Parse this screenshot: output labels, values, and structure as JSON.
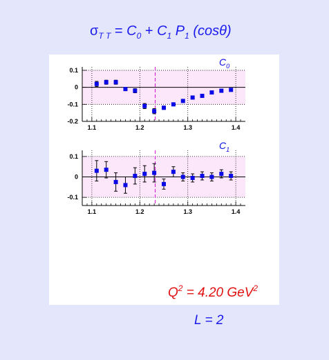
{
  "title": {
    "sigma": "σ",
    "sigma_sub": "T T",
    "eq": " = ",
    "c0": "C",
    "c0_sub": "0",
    "plus": " + ",
    "c1": "C",
    "c1_sub": "1",
    "p": " P",
    "p_sub": "1",
    "arg": " (cosθ)"
  },
  "q2_label": {
    "q": "Q",
    "exp": "2",
    "value": " = 4.20 GeV",
    "unit_exp": "2"
  },
  "l_label": "L = 2",
  "colors": {
    "background": "#e4e6fb",
    "panel": "#ffffff",
    "band": "#fce6fa",
    "marker": "#0a0ae6",
    "title": "#1a1aee",
    "q2": "#e01010",
    "dashed_line": "#d010d0"
  },
  "chart_data": [
    {
      "type": "scatter",
      "series_label": "C0",
      "series_label_main": "C",
      "series_label_sub": "0",
      "xlim": [
        1.08,
        1.42
      ],
      "ylim": [
        -0.2,
        0.12
      ],
      "xticks": [
        1.1,
        1.2,
        1.3,
        1.4
      ],
      "xtick_labels": [
        "1.1",
        "1.2",
        "1.3",
        "1.4"
      ],
      "yticks": [
        0.1,
        0,
        -0.1,
        -0.2
      ],
      "ytick_labels": [
        "0.1",
        "0",
        "-0.1",
        "-0.2"
      ],
      "band": [
        -0.1,
        0.1
      ],
      "grid": true,
      "vline_x": 1.232,
      "x": [
        1.11,
        1.13,
        1.15,
        1.17,
        1.19,
        1.21,
        1.23,
        1.25,
        1.27,
        1.29,
        1.31,
        1.33,
        1.35,
        1.37,
        1.39
      ],
      "y": [
        0.02,
        0.03,
        0.03,
        -0.01,
        -0.02,
        -0.11,
        -0.14,
        -0.12,
        -0.1,
        -0.08,
        -0.06,
        -0.05,
        -0.03,
        -0.02,
        -0.015
      ],
      "err": [
        0.015,
        0.012,
        0.012,
        0.01,
        0.012,
        0.015,
        0.015,
        0.01,
        0.008,
        0.008,
        0.008,
        0.008,
        0.008,
        0.008,
        0.008
      ]
    },
    {
      "type": "scatter",
      "series_label": "C1",
      "series_label_main": "C",
      "series_label_sub": "1",
      "xlim": [
        1.08,
        1.42
      ],
      "ylim": [
        -0.14,
        0.13
      ],
      "xticks": [
        1.1,
        1.2,
        1.3,
        1.4
      ],
      "xtick_labels": [
        "1.1",
        "1.2",
        "1.3",
        "1.4"
      ],
      "yticks": [
        0.1,
        0,
        -0.1
      ],
      "ytick_labels": [
        "0.1",
        "0",
        "-0.1"
      ],
      "band": [
        -0.1,
        0.1
      ],
      "grid": true,
      "vline_x": 1.232,
      "x": [
        1.11,
        1.13,
        1.15,
        1.17,
        1.19,
        1.21,
        1.23,
        1.25,
        1.27,
        1.29,
        1.31,
        1.33,
        1.35,
        1.37,
        1.39
      ],
      "y": [
        0.03,
        0.035,
        -0.025,
        -0.04,
        0.005,
        0.015,
        0.02,
        -0.035,
        0.025,
        0.0,
        -0.005,
        0.005,
        0.0,
        0.015,
        0.005
      ],
      "err": [
        0.05,
        0.04,
        0.045,
        0.04,
        0.04,
        0.04,
        0.045,
        0.025,
        0.025,
        0.02,
        0.02,
        0.02,
        0.02,
        0.02,
        0.02
      ]
    }
  ]
}
